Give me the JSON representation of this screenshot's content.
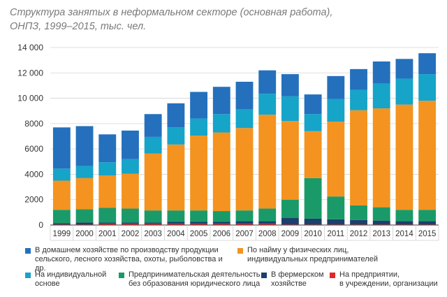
{
  "chart_data": {
    "type": "bar",
    "stacked": true,
    "title_line1": "Структура занятых в неформальном секторе (основная работа),",
    "title_line2": "ОНПЗ, 1999–2015, тыс. чел.",
    "categories": [
      "1999",
      "2000",
      "2001",
      "2002",
      "2003",
      "2004",
      "2005",
      "2006",
      "2007",
      "2008",
      "2009",
      "2010",
      "2011",
      "2012",
      "2013",
      "2014",
      "2015"
    ],
    "yticks": [
      "0",
      "2000",
      "4000",
      "6000",
      "8000",
      "10 000",
      "12 000",
      "14 000"
    ],
    "ytick_values": [
      0,
      2000,
      4000,
      6000,
      8000,
      10000,
      12000,
      14000
    ],
    "ylim": [
      0,
      14000
    ],
    "series": [
      {
        "name": "На предприятии, в учреждении, организации",
        "color": "#e3262b",
        "values": [
          50,
          50,
          100,
          100,
          100,
          100,
          100,
          100,
          100,
          100,
          50,
          50,
          50,
          50,
          50,
          50,
          50
        ]
      },
      {
        "name": "В фермерском хозяйстве",
        "color": "#1c3f6e",
        "values": [
          100,
          150,
          100,
          100,
          100,
          150,
          150,
          150,
          200,
          200,
          500,
          450,
          400,
          350,
          300,
          250,
          250
        ]
      },
      {
        "name": "Предпринимательская деятельность без образования юридического лица",
        "color": "#1a9a68",
        "values": [
          1050,
          1050,
          1150,
          1100,
          950,
          900,
          900,
          850,
          850,
          1000,
          1450,
          3200,
          1800,
          1150,
          1050,
          900,
          900
        ]
      },
      {
        "name": "По найму у физических лиц, индивидуальных предпринимателей",
        "color": "#f4931f",
        "values": [
          2300,
          2450,
          2550,
          2750,
          4500,
          5200,
          5900,
          6200,
          6500,
          7400,
          6200,
          3700,
          5900,
          7500,
          7800,
          8300,
          8600
        ]
      },
      {
        "name": "На индивидуальной основе",
        "color": "#16a4c8",
        "values": [
          950,
          950,
          1050,
          1150,
          1300,
          1350,
          1350,
          1450,
          1500,
          1650,
          1950,
          1350,
          1800,
          1600,
          1950,
          2050,
          2100
        ]
      },
      {
        "name": "В домашнем хозяйстве по производству продукции сельского, лесного хозяйства, охоты, рыболовства и др.",
        "color": "#2470bd",
        "values": [
          3250,
          3150,
          2200,
          2250,
          1800,
          1900,
          2100,
          2150,
          2150,
          1850,
          1750,
          1550,
          1800,
          1650,
          1750,
          1550,
          1650
        ]
      }
    ]
  },
  "legend": [
    {
      "text": "В домашнем хозяйстве по производству продукции\nсельского, лесного хозяйства, охоты, рыболовства и др.",
      "color": "#2470bd"
    },
    {
      "text": "По найму у физических лиц,\nиндивидуальных предпринимателей",
      "color": "#f4931f"
    },
    {
      "text": "На индивидуальной\nоснове",
      "color": "#16a4c8"
    },
    {
      "text": "Предпринимательская деятельность\nбез образования юридического лица",
      "color": "#1a9a68"
    },
    {
      "text": "В фермерском\nхозяйстве",
      "color": "#1c3f6e"
    },
    {
      "text": "На предприятии,\nв учреждении, организации",
      "color": "#e3262b"
    }
  ]
}
